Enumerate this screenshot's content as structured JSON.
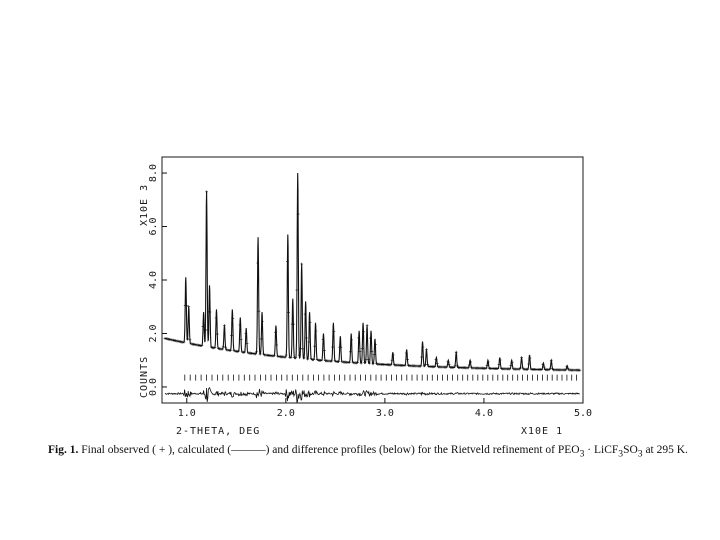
{
  "chart_data": {
    "type": "line",
    "xlabel": "2-THETA, DEG",
    "x_scale_note": "X10E  1",
    "ylabel": "COUNTS",
    "y_scale_note": "X10E  3",
    "xlim": [
      0.75,
      5.0
    ],
    "ylim": [
      -0.6,
      8.6
    ],
    "x_ticks": [
      "1.0",
      "2.0",
      "3.0",
      "4.0",
      "5.0"
    ],
    "x_tick_values": [
      1.0,
      2.0,
      3.0,
      4.0,
      5.0
    ],
    "y_ticks": [
      "0.0",
      "2.0",
      "4.0",
      "6.0",
      "8.0"
    ],
    "y_tick_values": [
      0.0,
      2.0,
      4.0,
      6.0,
      8.0
    ],
    "peaks": [
      {
        "x": 0.99,
        "y": 4.1
      },
      {
        "x": 1.02,
        "y": 3.0
      },
      {
        "x": 1.17,
        "y": 2.8
      },
      {
        "x": 1.2,
        "y": 7.3
      },
      {
        "x": 1.23,
        "y": 3.8
      },
      {
        "x": 1.3,
        "y": 2.9
      },
      {
        "x": 1.38,
        "y": 2.3
      },
      {
        "x": 1.46,
        "y": 2.9
      },
      {
        "x": 1.54,
        "y": 2.6
      },
      {
        "x": 1.6,
        "y": 2.2
      },
      {
        "x": 1.72,
        "y": 5.6
      },
      {
        "x": 1.76,
        "y": 2.8
      },
      {
        "x": 1.9,
        "y": 2.3
      },
      {
        "x": 2.02,
        "y": 5.7
      },
      {
        "x": 2.07,
        "y": 3.3
      },
      {
        "x": 2.12,
        "y": 8.0
      },
      {
        "x": 2.16,
        "y": 4.6
      },
      {
        "x": 2.2,
        "y": 3.2
      },
      {
        "x": 2.24,
        "y": 2.8
      },
      {
        "x": 2.3,
        "y": 2.4
      },
      {
        "x": 2.38,
        "y": 2.0
      },
      {
        "x": 2.48,
        "y": 2.4
      },
      {
        "x": 2.55,
        "y": 1.9
      },
      {
        "x": 2.66,
        "y": 2.0
      },
      {
        "x": 2.74,
        "y": 2.1
      },
      {
        "x": 2.78,
        "y": 2.4
      },
      {
        "x": 2.82,
        "y": 2.3
      },
      {
        "x": 2.86,
        "y": 2.1
      },
      {
        "x": 2.9,
        "y": 1.8
      },
      {
        "x": 3.08,
        "y": 1.3
      },
      {
        "x": 3.22,
        "y": 1.4
      },
      {
        "x": 3.38,
        "y": 1.7
      },
      {
        "x": 3.42,
        "y": 1.4
      },
      {
        "x": 3.52,
        "y": 1.1
      },
      {
        "x": 3.64,
        "y": 1.0
      },
      {
        "x": 3.72,
        "y": 1.3
      },
      {
        "x": 3.86,
        "y": 1.0
      },
      {
        "x": 4.04,
        "y": 1.0
      },
      {
        "x": 4.16,
        "y": 1.1
      },
      {
        "x": 4.28,
        "y": 1.0
      },
      {
        "x": 4.38,
        "y": 1.1
      },
      {
        "x": 4.46,
        "y": 1.2
      },
      {
        "x": 4.6,
        "y": 0.9
      },
      {
        "x": 4.68,
        "y": 1.0
      },
      {
        "x": 4.84,
        "y": 0.8
      }
    ],
    "reflection_tick_level": 0.35,
    "difference_level": -0.25
  },
  "caption": {
    "label": "Fig. 1.",
    "text_1": "Final observed ( + ), calculated (",
    "dash": "———",
    "text_2": ") and difference profiles (below) for the Rietveld refinement of PEO",
    "sub_1": "3",
    "text_3": " · LiCF",
    "sub_2": "3",
    "text_4": "SO",
    "sub_3": "3",
    "text_5": " at 295 K."
  }
}
